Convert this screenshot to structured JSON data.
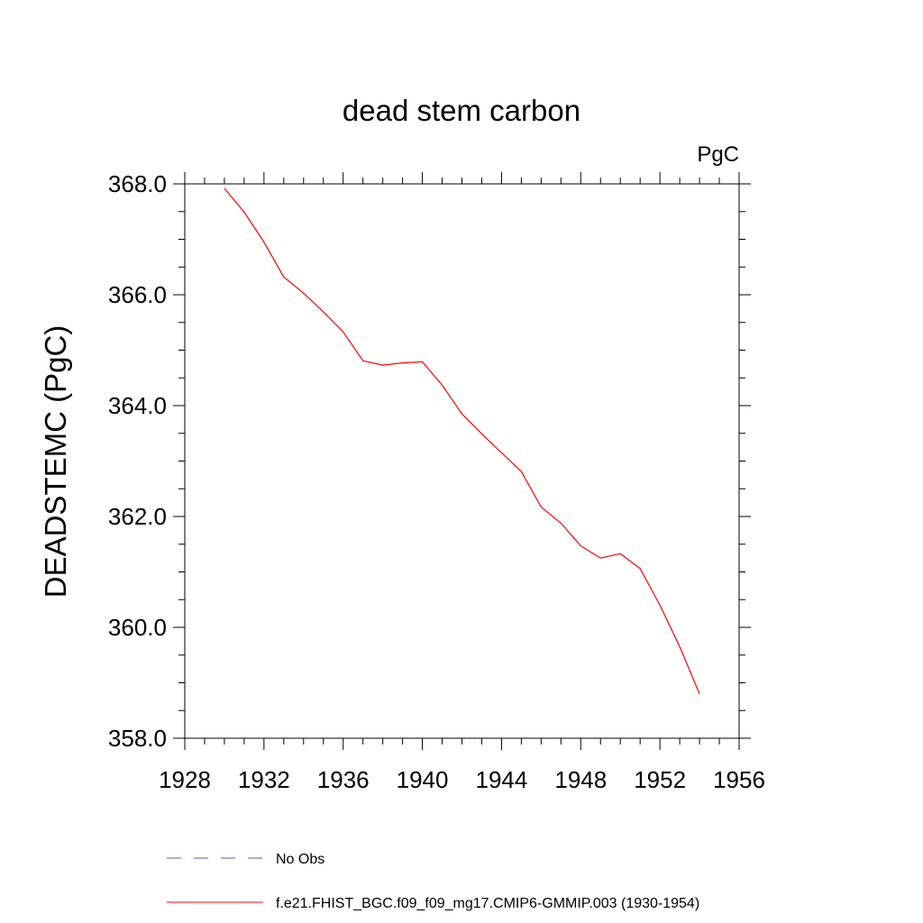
{
  "chart_data": {
    "type": "line",
    "title": "dead stem carbon",
    "units_label": "PgC",
    "ylabel": "DEADSTEMC  (PgC)",
    "xlabel": "",
    "xlim": [
      1928,
      1956
    ],
    "ylim": [
      358.0,
      368.0
    ],
    "x_ticks": [
      1928,
      1932,
      1936,
      1940,
      1944,
      1948,
      1952,
      1956
    ],
    "y_ticks": [
      "358.0",
      "360.0",
      "362.0",
      "364.0",
      "366.0",
      "368.0"
    ],
    "grid": false,
    "legend_position": "bottom",
    "series": [
      {
        "name": "No Obs",
        "color": "#5555cc",
        "dash": true,
        "x": [],
        "y": []
      },
      {
        "name": "f.e21.FHIST_BGC.f09_f09_mg17.CMIP6-GMMIP.003 (1930-1954)",
        "color": "#ff0000",
        "dash": false,
        "x": [
          1930,
          1931,
          1932,
          1933,
          1934,
          1935,
          1936,
          1937,
          1938,
          1939,
          1940,
          1941,
          1942,
          1943,
          1944,
          1945,
          1946,
          1947,
          1948,
          1949,
          1950,
          1951,
          1952,
          1953,
          1954
        ],
        "y": [
          367.92,
          367.49,
          366.95,
          366.32,
          366.03,
          365.69,
          365.33,
          364.81,
          364.73,
          364.77,
          364.79,
          364.37,
          363.85,
          363.49,
          363.15,
          362.81,
          362.17,
          361.88,
          361.47,
          361.25,
          361.33,
          361.06,
          360.4,
          359.65,
          358.8
        ]
      }
    ]
  }
}
